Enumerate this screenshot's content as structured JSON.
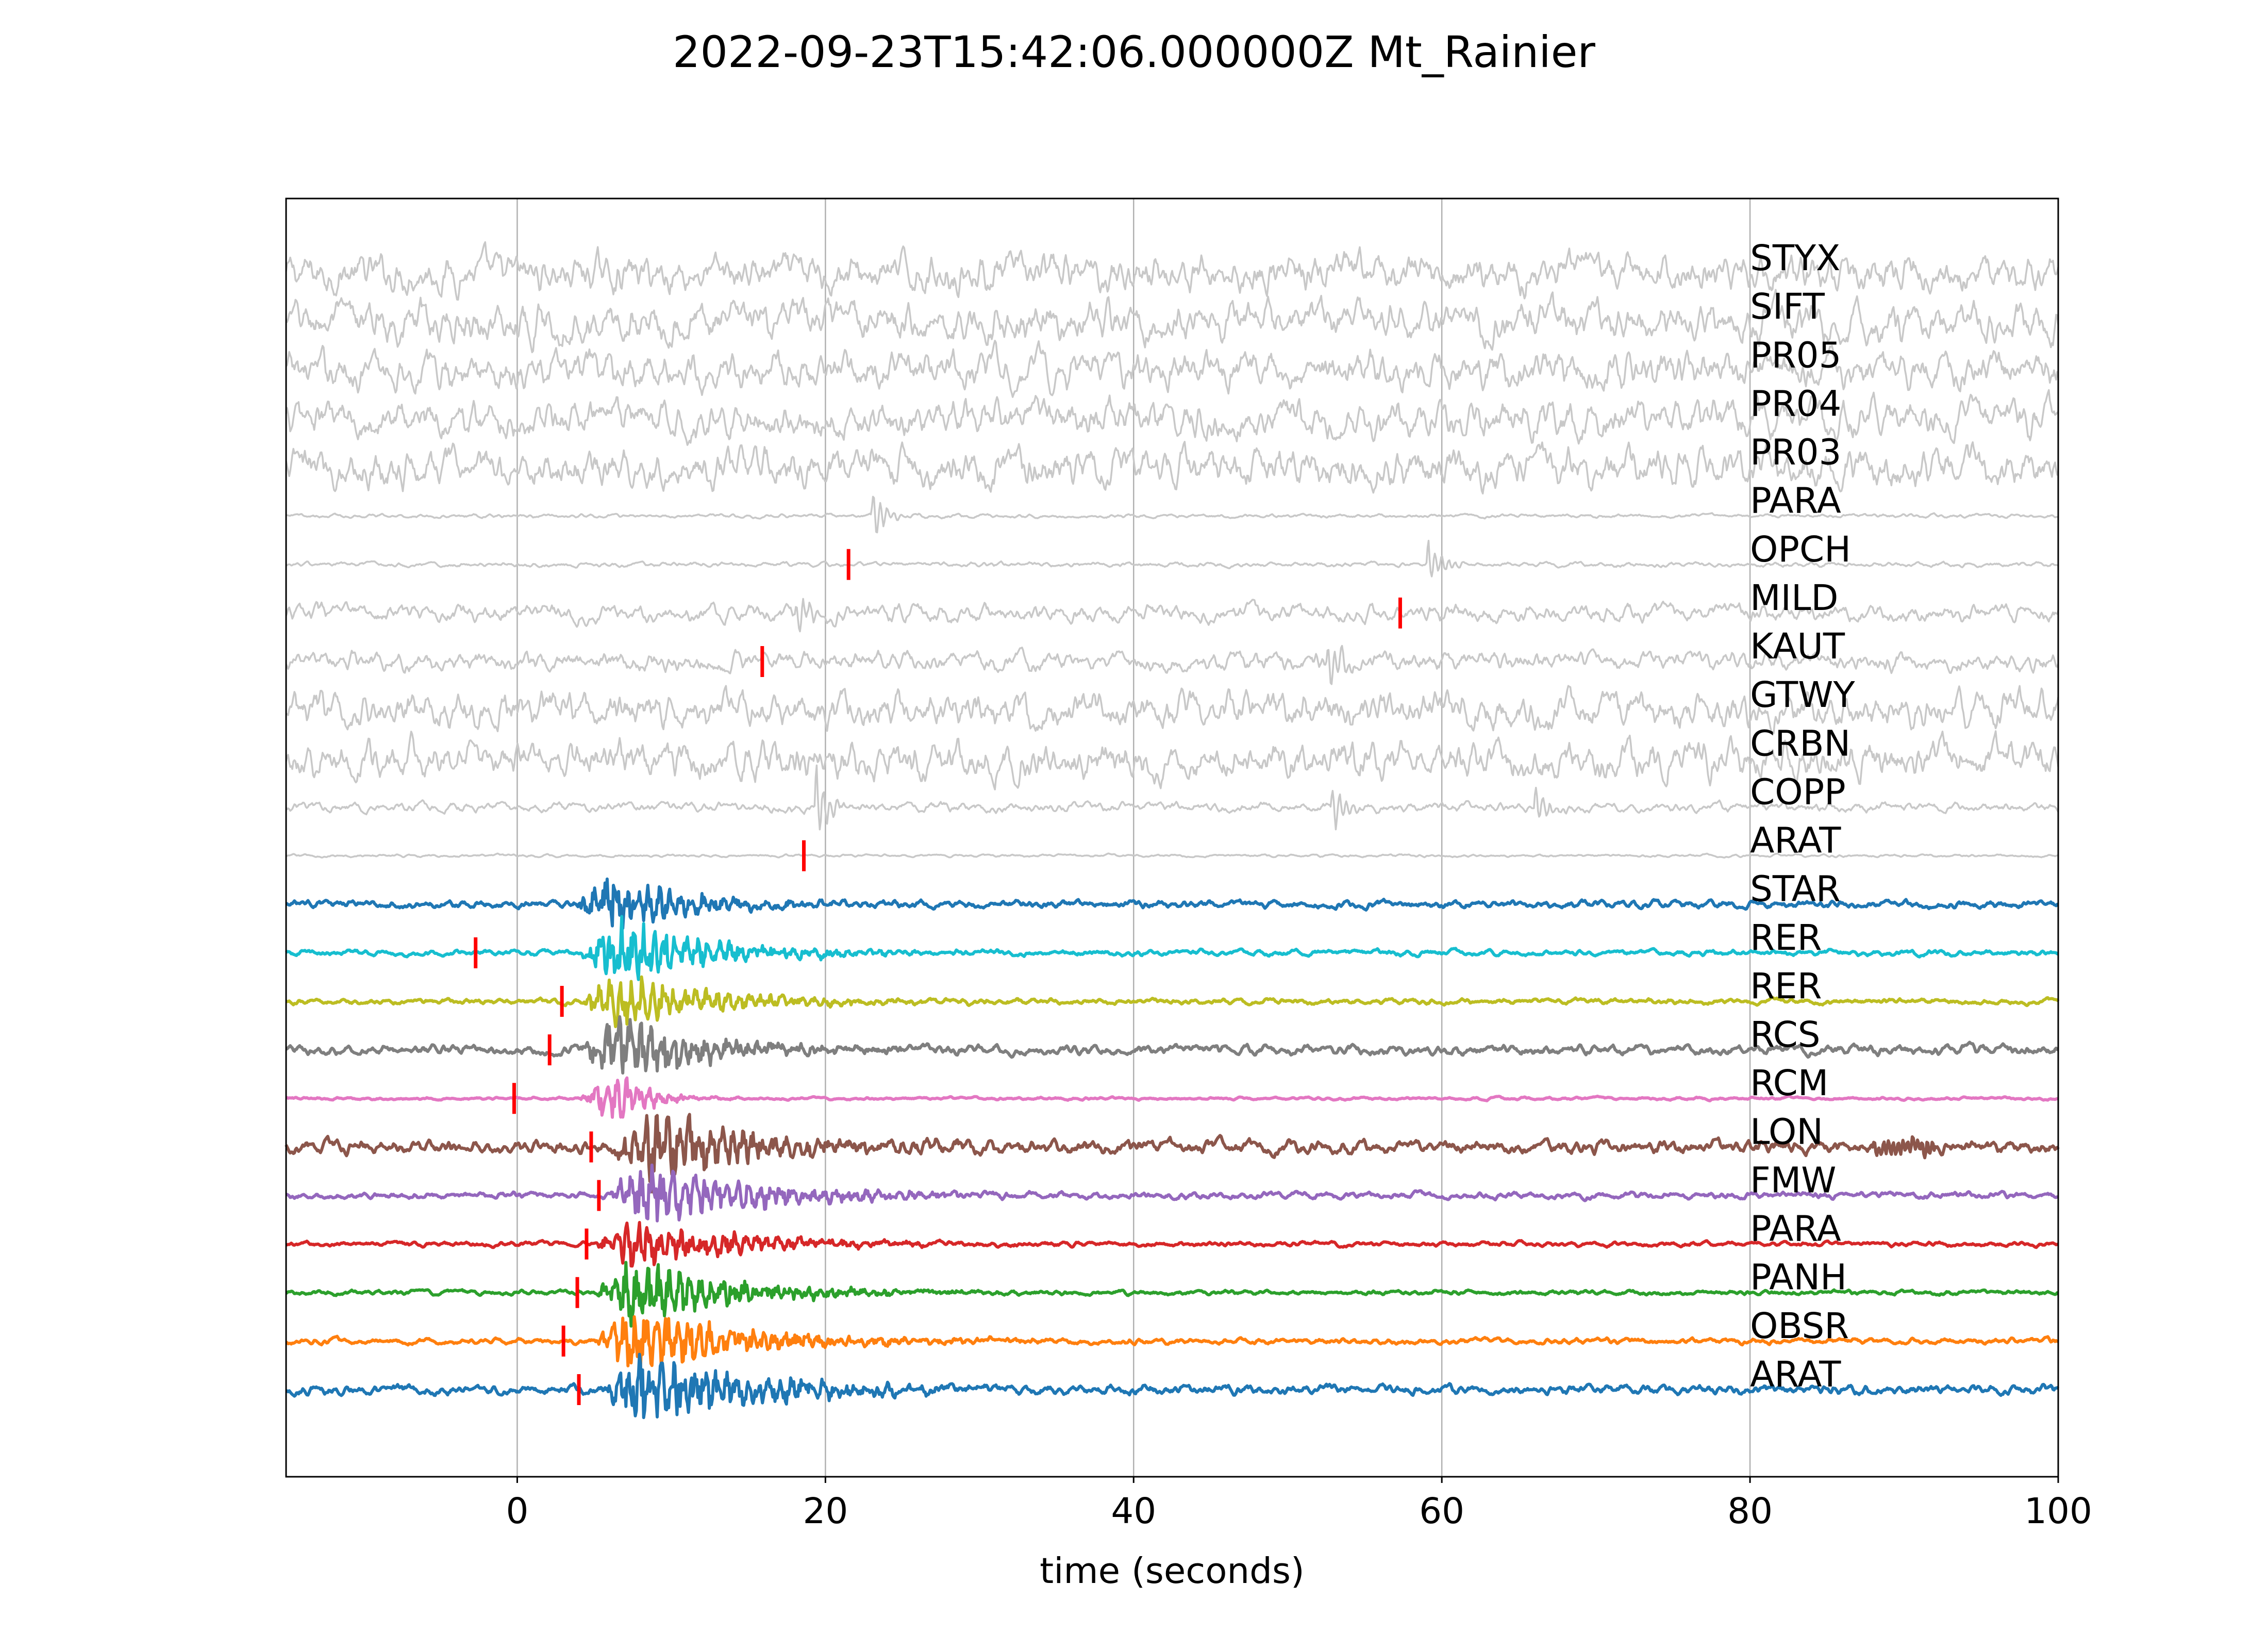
{
  "chart_data": {
    "type": "line",
    "title": "2022-09-23T15:42:06.000000Z Mt_Rainier",
    "xlabel": "time (seconds)",
    "ylabel": "",
    "xlim": [
      -15,
      100
    ],
    "x_ticks": [
      0,
      20,
      40,
      60,
      80,
      100
    ],
    "grid": "vertical",
    "legend": "none",
    "label_x": 80,
    "series": [
      {
        "name": "STYX",
        "color": "#c8c8c8",
        "kind": "noise",
        "amp": 0.4,
        "pick": null
      },
      {
        "name": "SIFT",
        "color": "#c8c8c8",
        "kind": "noise",
        "amp": 0.42,
        "pick": null
      },
      {
        "name": "PR05",
        "color": "#c8c8c8",
        "kind": "noise",
        "amp": 0.4,
        "pick": null
      },
      {
        "name": "PR04",
        "color": "#c8c8c8",
        "kind": "noise",
        "amp": 0.4,
        "pick": null
      },
      {
        "name": "PR03",
        "color": "#c8c8c8",
        "kind": "noise",
        "amp": 0.42,
        "pick": null
      },
      {
        "name": "PARA",
        "color": "#c8c8c8",
        "kind": "quiet",
        "amp": 0.04,
        "pick": null,
        "bursts": [
          [
            23.0,
            0.5
          ]
        ]
      },
      {
        "name": "OPCH",
        "color": "#c8c8c8",
        "kind": "quiet",
        "amp": 0.05,
        "pick": 21.5,
        "bursts": [
          [
            59.0,
            0.5
          ]
        ]
      },
      {
        "name": "MILD",
        "color": "#c8c8c8",
        "kind": "noise",
        "amp": 0.18,
        "pick": 57.3,
        "bursts": [
          [
            18.0,
            0.4
          ]
        ]
      },
      {
        "name": "KAUT",
        "color": "#c8c8c8",
        "kind": "noise",
        "amp": 0.2,
        "pick": 15.9,
        "bursts": [
          [
            52.5,
            0.5
          ]
        ]
      },
      {
        "name": "GTWY",
        "color": "#c8c8c8",
        "kind": "noise",
        "amp": 0.38,
        "pick": null
      },
      {
        "name": "CRBN",
        "color": "#c8c8c8",
        "kind": "noise",
        "amp": 0.4,
        "pick": null
      },
      {
        "name": "COPP",
        "color": "#c8c8c8",
        "kind": "quiet",
        "amp": 0.1,
        "pick": null,
        "bursts": [
          [
            19.3,
            0.8
          ],
          [
            52.8,
            0.5
          ],
          [
            66.0,
            0.4
          ]
        ]
      },
      {
        "name": "ARAT",
        "color": "#c8c8c8",
        "kind": "quiet",
        "amp": 0.03,
        "pick": 18.6,
        "bursts": []
      },
      {
        "name": "STAR",
        "color": "#1f77b4",
        "kind": "event",
        "amp": 0.08,
        "pick": null,
        "onset": 3.5,
        "dur": 9,
        "peak": 0.55
      },
      {
        "name": "RER",
        "color": "#17becf",
        "kind": "event",
        "amp": 0.06,
        "pick": -2.7,
        "onset": 4.0,
        "dur": 11,
        "peak": 0.6
      },
      {
        "name": "RER",
        "color": "#bcbd22",
        "kind": "event",
        "amp": 0.06,
        "pick": 2.9,
        "onset": 4.0,
        "dur": 11,
        "peak": 0.5
      },
      {
        "name": "RCS",
        "color": "#7f7f7f",
        "kind": "event",
        "amp": 0.1,
        "pick": 2.1,
        "onset": 4.0,
        "dur": 10,
        "peak": 0.65
      },
      {
        "name": "RCM",
        "color": "#e377c2",
        "kind": "event",
        "amp": 0.03,
        "pick": -0.2,
        "onset": 4.0,
        "dur": 3.5,
        "peak": 0.5
      },
      {
        "name": "LON",
        "color": "#8c564b",
        "kind": "event",
        "amp": 0.14,
        "pick": 4.8,
        "onset": 6.0,
        "dur": 12,
        "peak": 0.65
      },
      {
        "name": "FMW",
        "color": "#9467bd",
        "kind": "event",
        "amp": 0.07,
        "pick": 5.3,
        "onset": 5.8,
        "dur": 13,
        "peak": 0.6
      },
      {
        "name": "PARA",
        "color": "#d62728",
        "kind": "event",
        "amp": 0.05,
        "pick": 4.5,
        "onset": 5.0,
        "dur": 12,
        "peak": 0.45
      },
      {
        "name": "PANH",
        "color": "#2ca02c",
        "kind": "event",
        "amp": 0.05,
        "pick": 3.9,
        "onset": 5.0,
        "dur": 12,
        "peak": 0.6
      },
      {
        "name": "OBSR",
        "color": "#ff7f0e",
        "kind": "event",
        "amp": 0.06,
        "pick": 3.0,
        "onset": 5.0,
        "dur": 13,
        "peak": 0.6
      },
      {
        "name": "ARAT",
        "color": "#1f77b4",
        "kind": "event",
        "amp": 0.1,
        "pick": 4.0,
        "onset": 5.5,
        "dur": 13,
        "peak": 0.7
      }
    ]
  }
}
